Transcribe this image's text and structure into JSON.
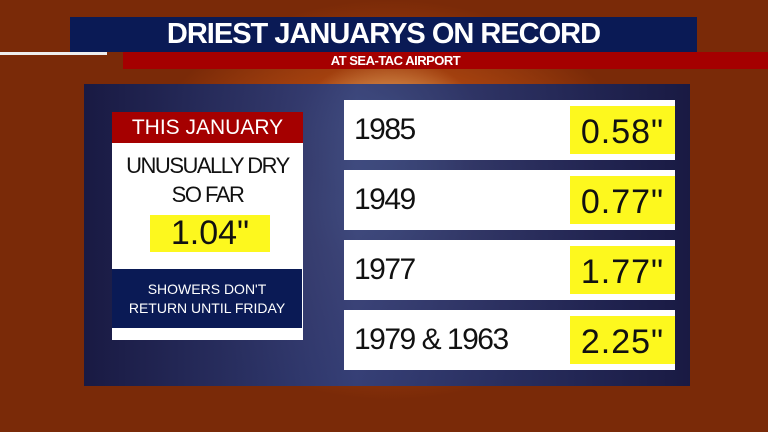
{
  "header": {
    "title": "DRIEST JANUARYS ON RECORD",
    "subtitle": "AT SEA-TAC AIRPORT"
  },
  "current": {
    "heading": "THIS JANUARY",
    "line1": "UNUSUALLY DRY",
    "line2": "SO FAR",
    "value": "1.04\"",
    "note1": "SHOWERS DON'T",
    "note2": "RETURN UNTIL FRIDAY"
  },
  "records": [
    {
      "year": "1985",
      "value": "0.58\""
    },
    {
      "year": "1949",
      "value": "0.77\""
    },
    {
      "year": "1977",
      "value": "1.77\""
    },
    {
      "year": "1979 & 1963",
      "value": "2.25\""
    }
  ],
  "colors": {
    "navy": "#0a1a55",
    "red": "#a50000",
    "highlight": "#fdf81e"
  }
}
